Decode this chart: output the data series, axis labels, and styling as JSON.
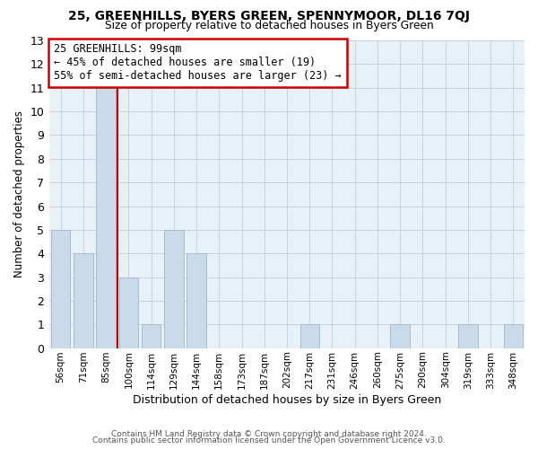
{
  "title1": "25, GREENHILLS, BYERS GREEN, SPENNYMOOR, DL16 7QJ",
  "title2": "Size of property relative to detached houses in Byers Green",
  "xlabel": "Distribution of detached houses by size in Byers Green",
  "ylabel": "Number of detached properties",
  "footer1": "Contains HM Land Registry data © Crown copyright and database right 2024.",
  "footer2": "Contains public sector information licensed under the Open Government Licence v3.0.",
  "annotation_line1": "25 GREENHILLS: 99sqm",
  "annotation_line2": "← 45% of detached houses are smaller (19)",
  "annotation_line3": "55% of semi-detached houses are larger (23) →",
  "bar_labels": [
    "56sqm",
    "71sqm",
    "85sqm",
    "100sqm",
    "114sqm",
    "129sqm",
    "144sqm",
    "158sqm",
    "173sqm",
    "187sqm",
    "202sqm",
    "217sqm",
    "231sqm",
    "246sqm",
    "260sqm",
    "275sqm",
    "290sqm",
    "304sqm",
    "319sqm",
    "333sqm",
    "348sqm"
  ],
  "bar_values": [
    5,
    4,
    11,
    3,
    1,
    5,
    4,
    0,
    0,
    0,
    0,
    1,
    0,
    0,
    0,
    1,
    0,
    0,
    1,
    0,
    1
  ],
  "bar_color": "#c9daea",
  "bar_edge_color": "#aabccc",
  "vline_color": "#cc0000",
  "annotation_box_color": "#cc0000",
  "grid_color": "#c8d4dc",
  "ylim": [
    0,
    13
  ],
  "yticks": [
    0,
    1,
    2,
    3,
    4,
    5,
    6,
    7,
    8,
    9,
    10,
    11,
    12,
    13
  ],
  "bg_color": "#ffffff",
  "plot_bg_color": "#e8f0f8"
}
